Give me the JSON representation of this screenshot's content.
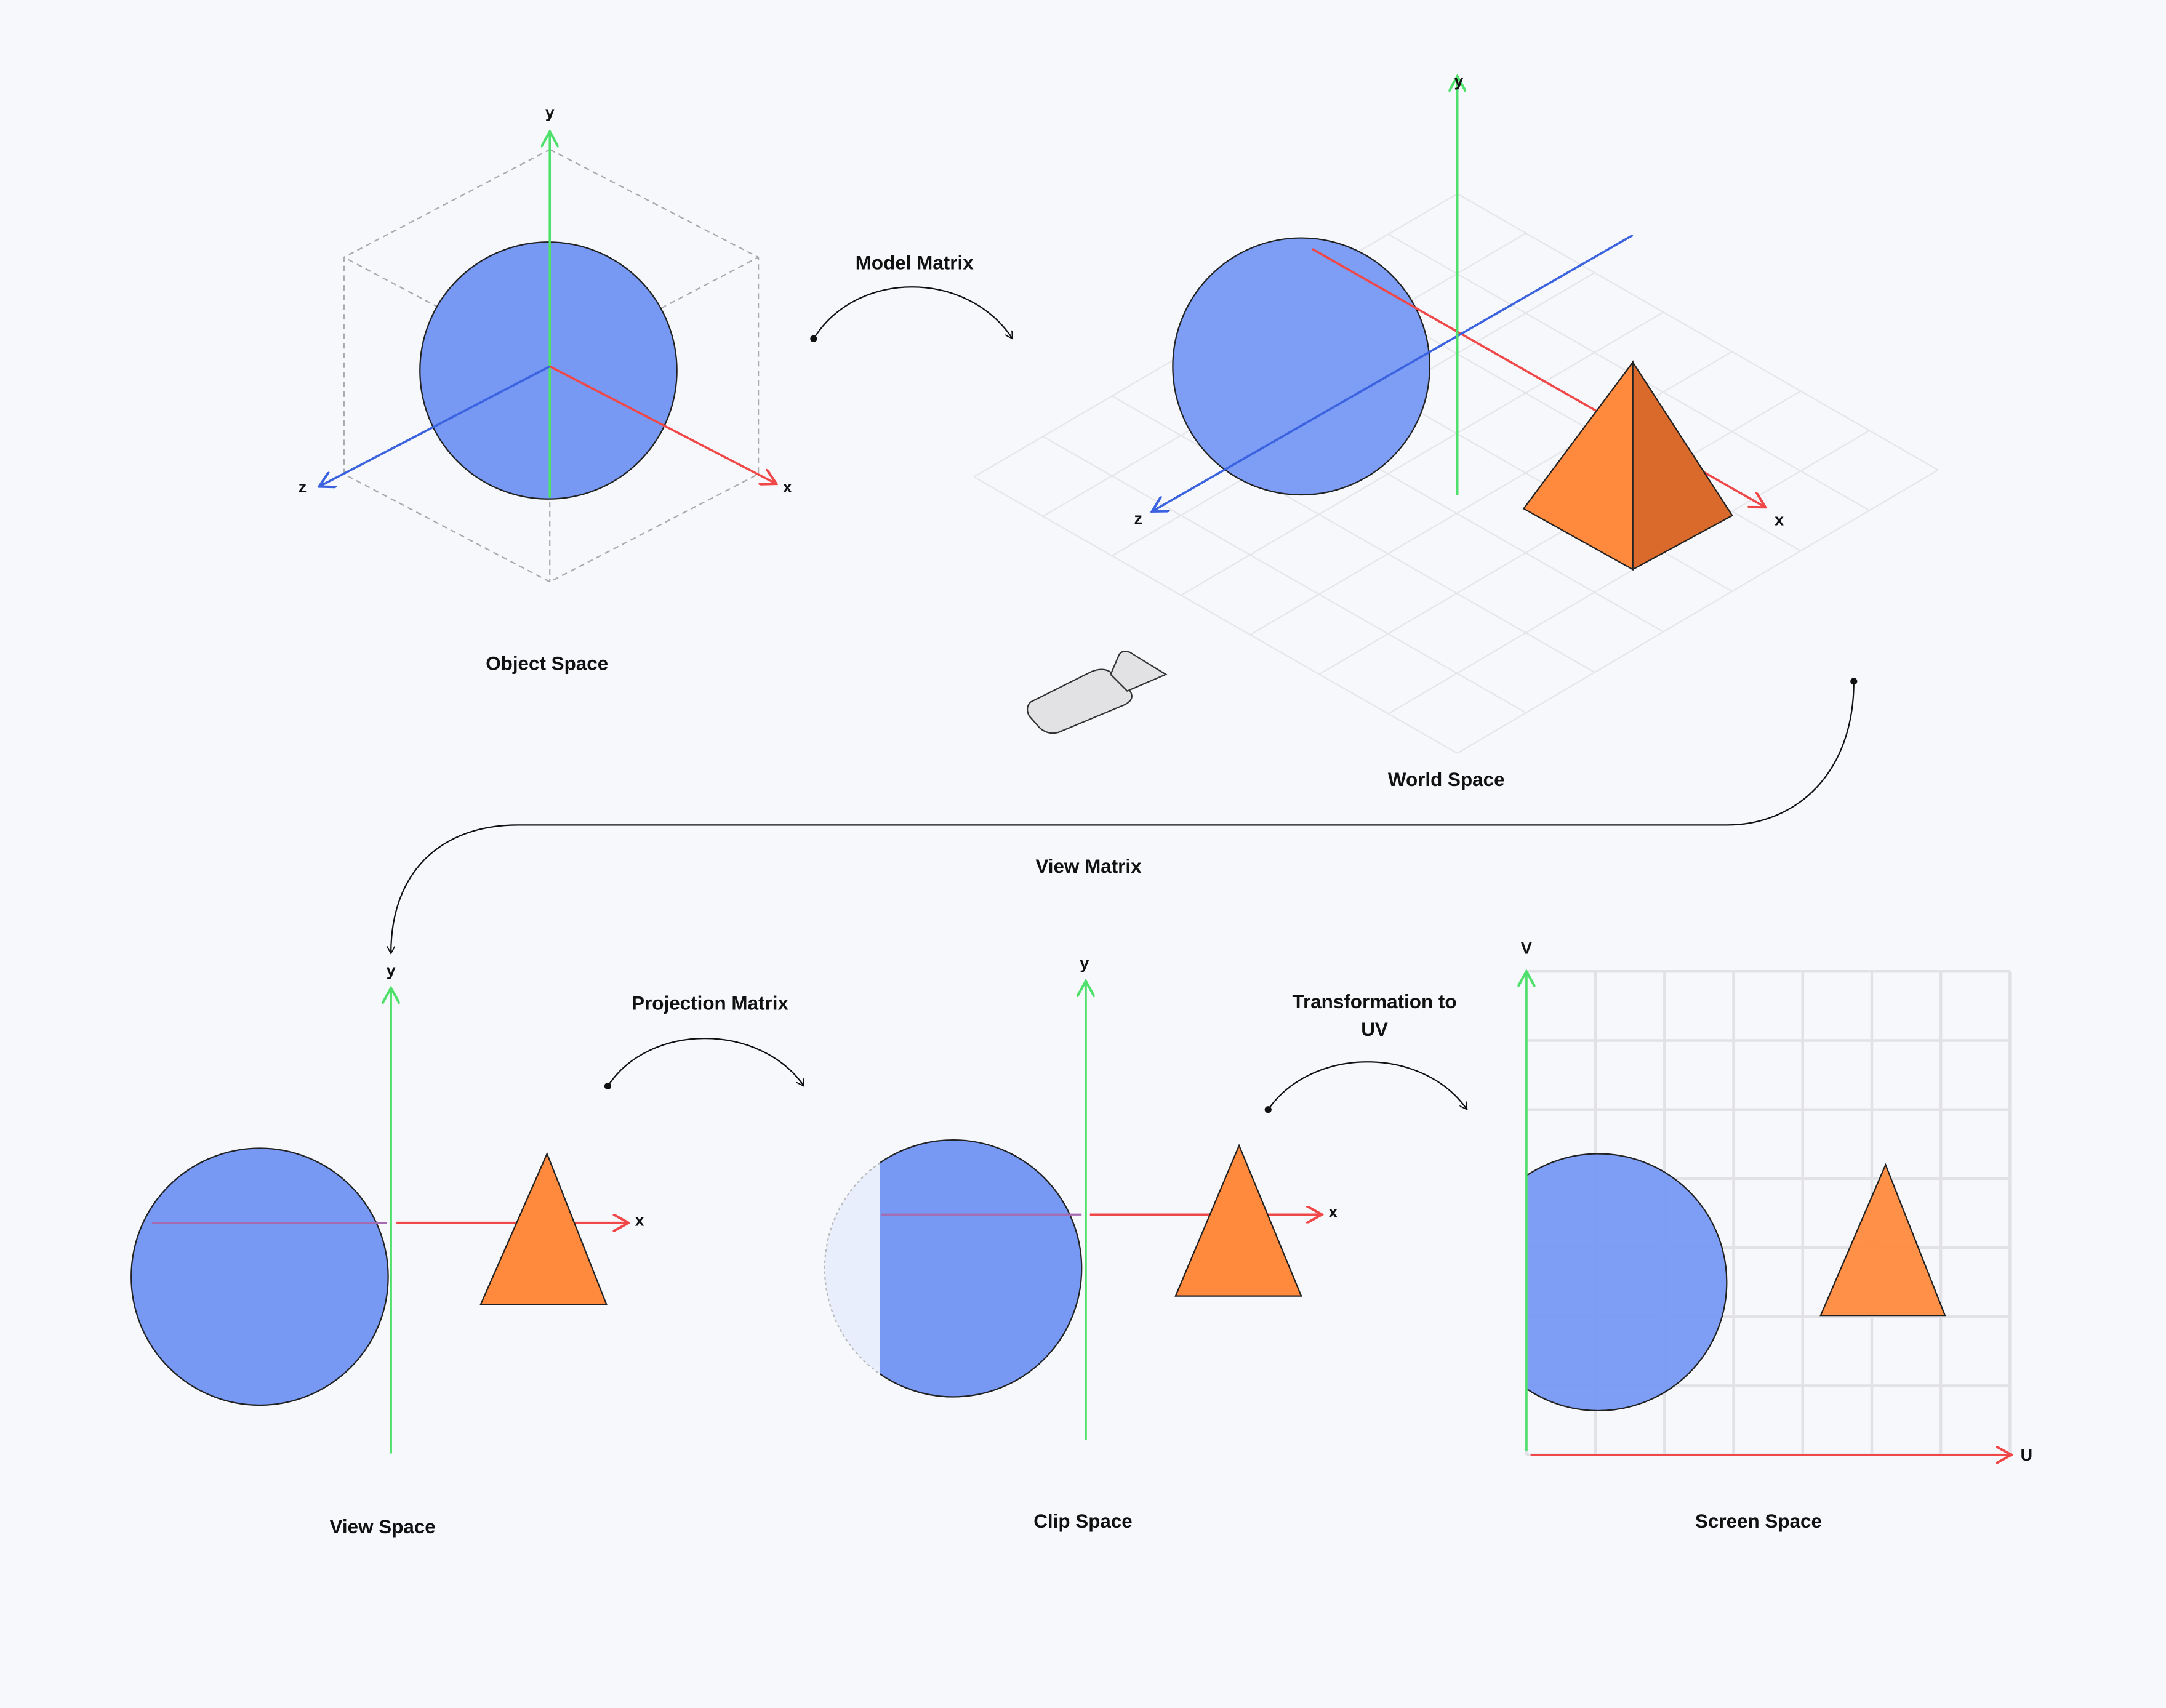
{
  "panels": [
    {
      "label": "Object Space",
      "axes": [
        "x",
        "y",
        "z"
      ]
    },
    {
      "label": "World Space",
      "axes": [
        "x",
        "y",
        "z"
      ]
    },
    {
      "label": "View Space",
      "axes": [
        "x",
        "y"
      ]
    },
    {
      "label": "Clip Space",
      "axes": [
        "x",
        "y"
      ]
    },
    {
      "label": "Screen Space",
      "axes": [
        "U",
        "V"
      ]
    }
  ],
  "transforms": [
    {
      "label_lines": [
        "Model Matrix"
      ]
    },
    {
      "label_lines": [
        "View Matrix"
      ]
    },
    {
      "label_lines": [
        "Projection Matrix"
      ]
    },
    {
      "label_lines": [
        "Transformation to",
        "UV"
      ]
    }
  ]
}
